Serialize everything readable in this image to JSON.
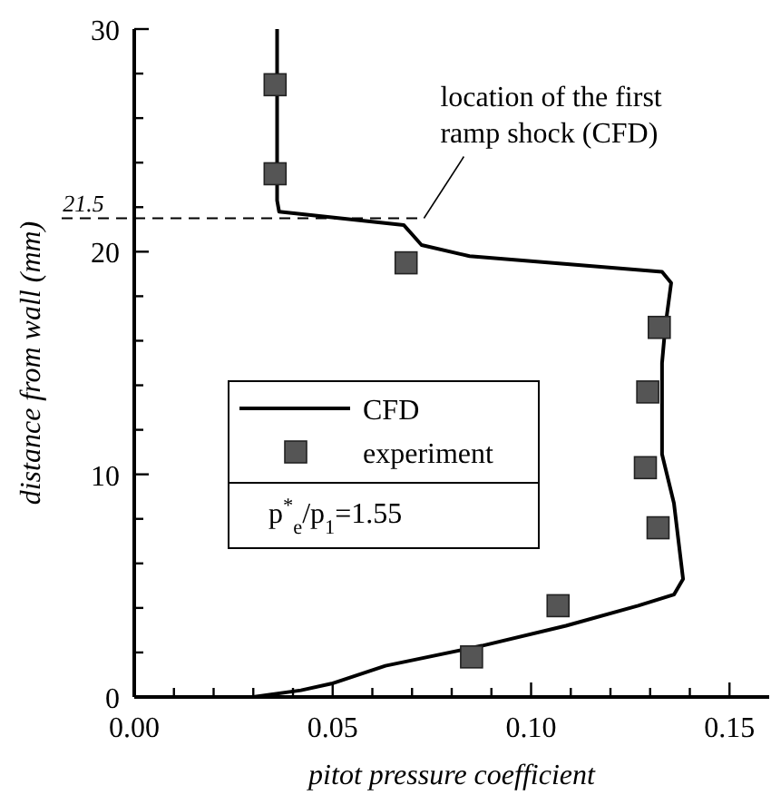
{
  "chart_data": {
    "type": "line",
    "xlabel": "pitot pressure coefficient",
    "ylabel": "distance from wall (mm)",
    "xlim": [
      0,
      0.16
    ],
    "ylim": [
      0,
      30
    ],
    "xticks": [
      {
        "value": 0,
        "label": "0.00"
      },
      {
        "value": 0.01,
        "label": null
      },
      {
        "value": 0.02,
        "label": null
      },
      {
        "value": 0.03,
        "label": null
      },
      {
        "value": 0.04,
        "label": null
      },
      {
        "value": 0.05,
        "label": "0.05"
      },
      {
        "value": 0.06,
        "label": null
      },
      {
        "value": 0.07,
        "label": null
      },
      {
        "value": 0.08,
        "label": null
      },
      {
        "value": 0.09,
        "label": null
      },
      {
        "value": 0.1,
        "label": "0.10"
      },
      {
        "value": 0.11,
        "label": null
      },
      {
        "value": 0.12,
        "label": null
      },
      {
        "value": 0.13,
        "label": null
      },
      {
        "value": 0.14,
        "label": null
      },
      {
        "value": 0.15,
        "label": "0.15"
      }
    ],
    "yticks": [
      0,
      {
        "value": 2,
        "label": null
      },
      {
        "value": 4,
        "label": null
      },
      {
        "value": 6,
        "label": null
      },
      {
        "value": 8,
        "label": null
      },
      10,
      {
        "value": 12,
        "label": null
      },
      {
        "value": 14,
        "label": null
      },
      {
        "value": 16,
        "label": null
      },
      {
        "value": 18,
        "label": null
      },
      20,
      {
        "value": 22,
        "label": null
      },
      {
        "value": 24,
        "label": null
      },
      {
        "value": 26,
        "label": null
      },
      {
        "value": 28,
        "label": null
      },
      30
    ],
    "series": [
      {
        "name": "CFD",
        "color": "#000000",
        "marker": "none",
        "line_style": "solid",
        "x": [
          0.024,
          0.03,
          0.042,
          0.0497,
          0.0633,
          0.0876,
          0.1088,
          0.127,
          0.136,
          0.1383,
          0.136,
          0.133,
          0.133,
          0.1338,
          0.1353,
          0.133,
          0.0845,
          0.0724,
          0.0694,
          0.0679,
          0.0365,
          0.036,
          0.036
        ],
        "values": [
          0,
          0.0,
          0.3,
          0.6,
          1.4,
          2.3,
          3.2,
          4.1,
          4.6,
          5.3,
          8.7,
          10.9,
          15.0,
          16.6,
          18.6,
          19.1,
          19.8,
          20.3,
          20.9,
          21.2,
          21.8,
          22.3,
          30
        ]
      },
      {
        "name": "experiment",
        "type": "scatter",
        "color": "#555555",
        "marker": "square",
        "x": [
          0.0355,
          0.0355,
          0.0685,
          0.1323,
          0.1294,
          0.1288,
          0.132,
          0.1068,
          0.085
        ],
        "values": [
          27.5,
          23.5,
          19.5,
          16.6,
          13.7,
          10.3,
          7.6,
          4.1,
          1.8
        ]
      }
    ],
    "ref_lines": [
      {
        "axis": "y",
        "value": 21.5,
        "label": "21.5",
        "line_style": "dashed",
        "color": "#000000"
      }
    ],
    "annotations": [
      {
        "text": "location of the first ramp shock (CFD)",
        "x": 0.073,
        "y": 21.5
      },
      "p$^{*}$$_{e}$/p$_{1}$=1.55"
    ],
    "legend": "center"
  }
}
